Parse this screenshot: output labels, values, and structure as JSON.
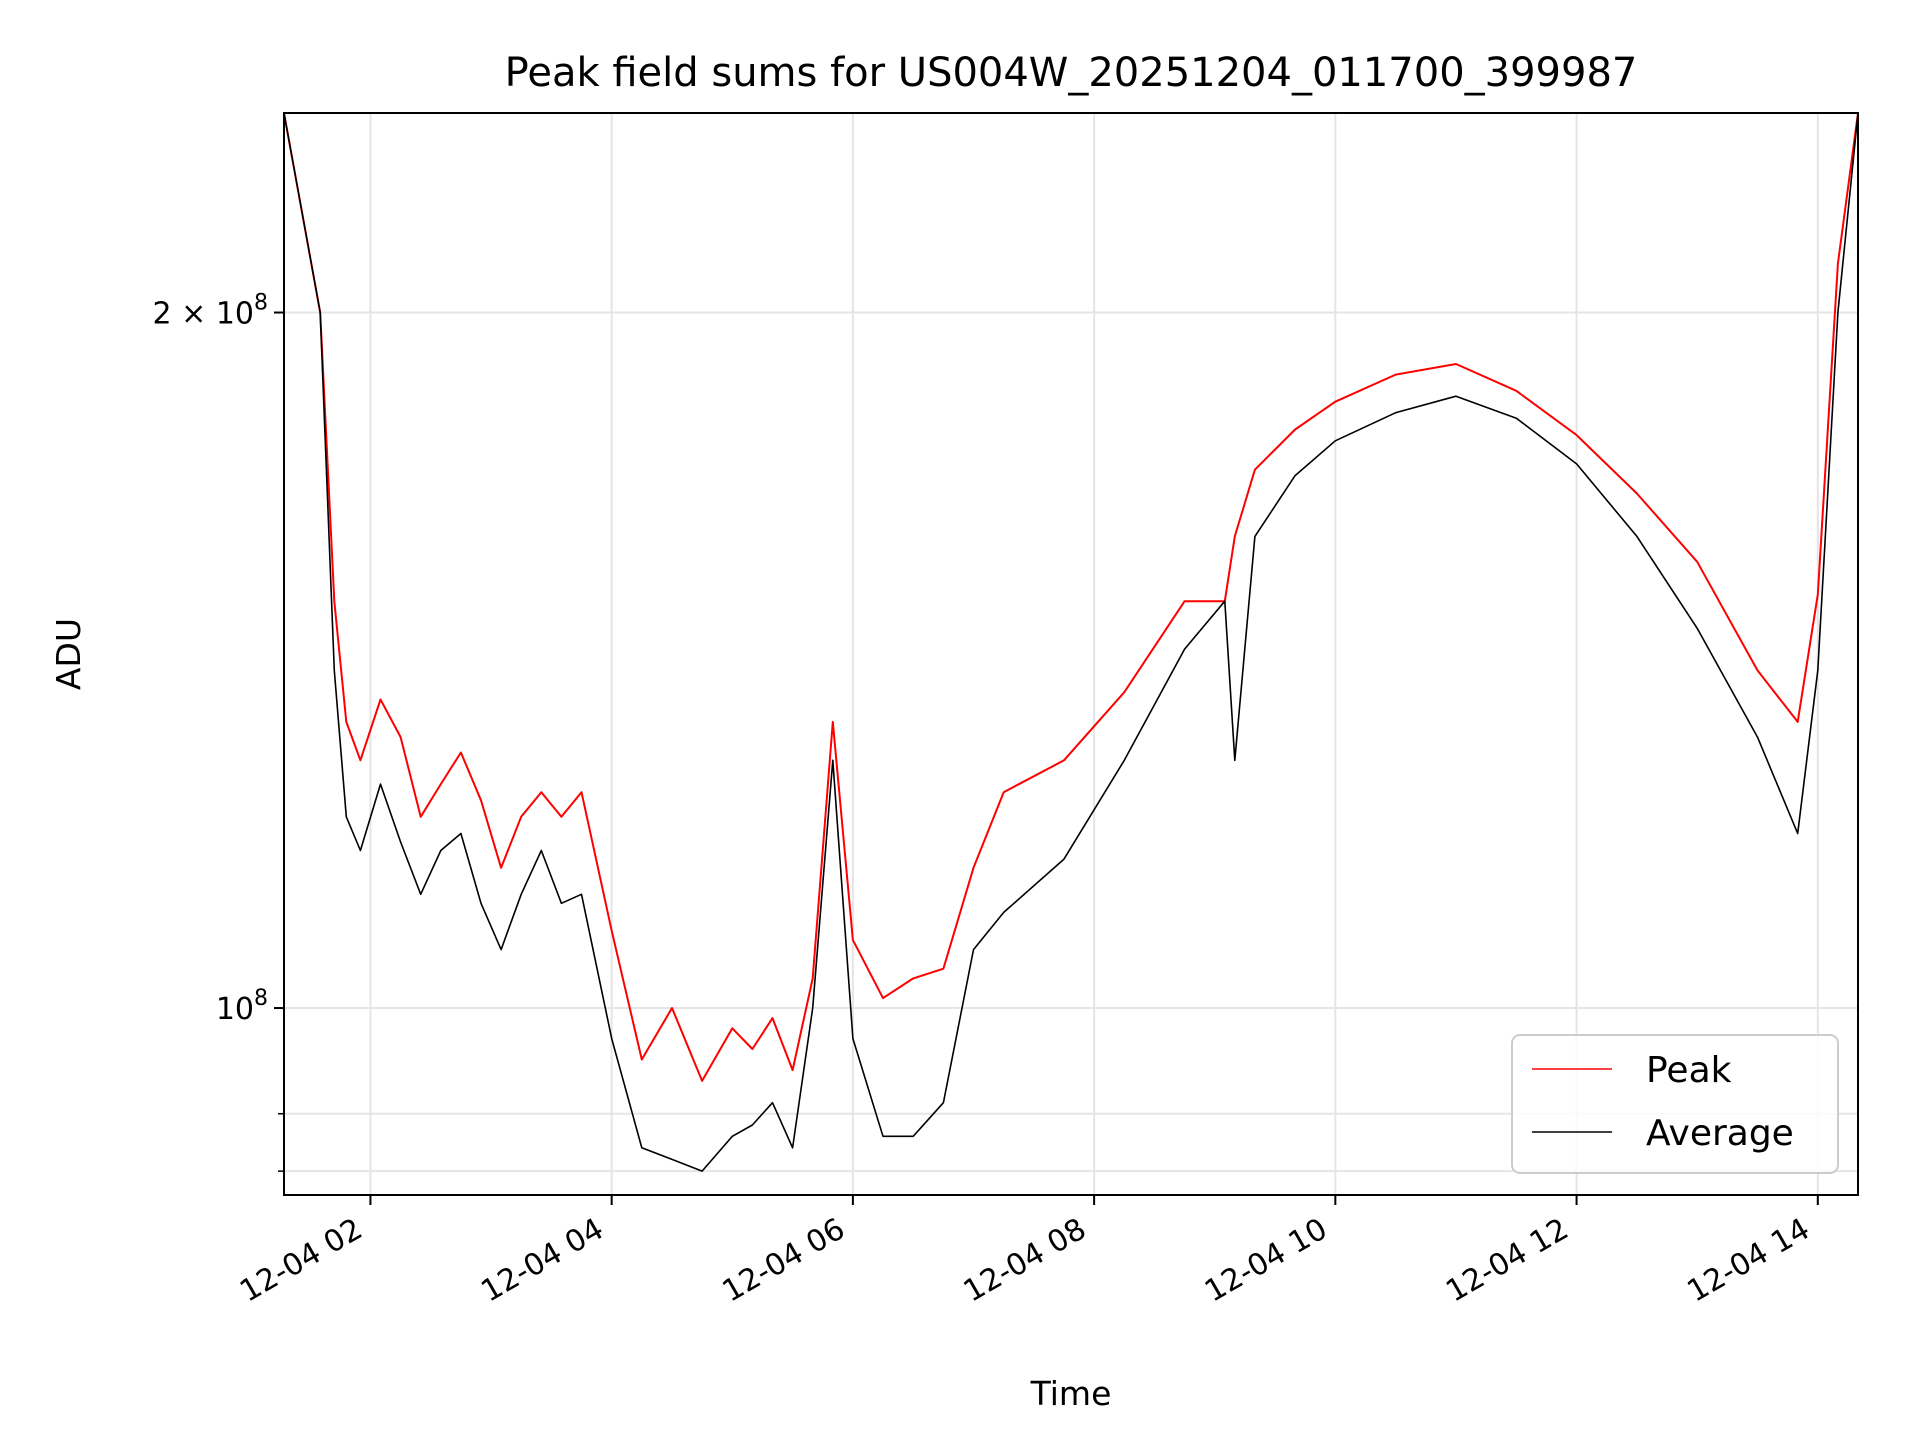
{
  "chart_data": {
    "type": "line",
    "title": "Peak field sums for US004W_20251204_011700_399987",
    "xlabel": "Time",
    "ylabel": "ADU",
    "y_scale": "log",
    "x_range": [
      "2025-12-04 01:17",
      "2025-12-04 14:20"
    ],
    "ylim": [
      83000000,
      244000000
    ],
    "x_ticks": [
      "12-04 02",
      "12-04 04",
      "12-04 06",
      "12-04 08",
      "12-04 10",
      "12-04 12",
      "12-04 14"
    ],
    "x_tick_hours": [
      2,
      4,
      6,
      8,
      10,
      12,
      14
    ],
    "y_ticks": [
      {
        "value": 200000000,
        "label": "2 × 10^8",
        "mantissa": "2 ×",
        "base": "10",
        "exp": "8"
      },
      {
        "value": 100000000,
        "label": "10^8",
        "mantissa": "",
        "base": "10",
        "exp": "8"
      }
    ],
    "y_minor_ticks": [
      90000000,
      85000000
    ],
    "grid": true,
    "legend_position": "lower-right",
    "colors": {
      "peak": "#ff0000",
      "average": "#000000",
      "grid": "#e5e5e5"
    },
    "series": [
      {
        "name": "Peak",
        "color": "#ff0000",
        "x": [
          "01:17",
          "01:35",
          "01:42",
          "01:48",
          "01:55",
          "02:05",
          "02:15",
          "02:25",
          "02:35",
          "02:45",
          "02:55",
          "03:05",
          "03:15",
          "03:25",
          "03:35",
          "03:45",
          "04:00",
          "04:15",
          "04:30",
          "04:45",
          "05:00",
          "05:10",
          "05:20",
          "05:30",
          "05:40",
          "05:50",
          "06:00",
          "06:15",
          "06:30",
          "06:45",
          "07:00",
          "07:15",
          "07:45",
          "08:15",
          "08:45",
          "09:05",
          "09:10",
          "09:20",
          "09:40",
          "10:00",
          "10:30",
          "11:00",
          "11:30",
          "12:00",
          "12:30",
          "13:00",
          "13:30",
          "13:50",
          "14:00",
          "14:10",
          "14:20"
        ],
        "y": [
          244000000,
          200000000,
          150000000,
          133000000,
          128000000,
          136000000,
          131000000,
          121000000,
          125000000,
          129000000,
          123000000,
          115000000,
          121000000,
          124000000,
          121000000,
          124000000,
          108000000,
          95000000,
          100000000,
          93000000,
          98000000,
          96000000,
          99000000,
          94000000,
          103000000,
          133000000,
          107000000,
          101000000,
          103000000,
          104000000,
          115000000,
          124000000,
          128000000,
          137000000,
          150000000,
          150000000,
          160000000,
          171000000,
          178000000,
          183000000,
          188000000,
          190000000,
          185000000,
          177000000,
          167000000,
          156000000,
          140000000,
          133000000,
          151000000,
          210000000,
          244000000
        ]
      },
      {
        "name": "Average",
        "color": "#000000",
        "x": [
          "01:17",
          "01:35",
          "01:42",
          "01:48",
          "01:55",
          "02:05",
          "02:15",
          "02:25",
          "02:35",
          "02:45",
          "02:55",
          "03:05",
          "03:15",
          "03:25",
          "03:35",
          "03:45",
          "04:00",
          "04:15",
          "04:30",
          "04:45",
          "05:00",
          "05:10",
          "05:20",
          "05:30",
          "05:40",
          "05:50",
          "06:00",
          "06:15",
          "06:30",
          "06:45",
          "07:00",
          "07:15",
          "07:45",
          "08:15",
          "08:45",
          "09:05",
          "09:10",
          "09:20",
          "09:40",
          "10:00",
          "10:30",
          "11:00",
          "11:30",
          "12:00",
          "12:30",
          "13:00",
          "13:30",
          "13:50",
          "14:00",
          "14:10",
          "14:20"
        ],
        "y": [
          244000000,
          200000000,
          140000000,
          121000000,
          117000000,
          125000000,
          118000000,
          112000000,
          117000000,
          119000000,
          111000000,
          106000000,
          112000000,
          117000000,
          111000000,
          112000000,
          97000000,
          87000000,
          86000000,
          85000000,
          88000000,
          89000000,
          91000000,
          87000000,
          100000000,
          128000000,
          97000000,
          88000000,
          88000000,
          91000000,
          106000000,
          110000000,
          116000000,
          128000000,
          143000000,
          150000000,
          128000000,
          160000000,
          170000000,
          176000000,
          181000000,
          184000000,
          180000000,
          172000000,
          160000000,
          146000000,
          131000000,
          119000000,
          140000000,
          200000000,
          244000000
        ]
      }
    ]
  }
}
